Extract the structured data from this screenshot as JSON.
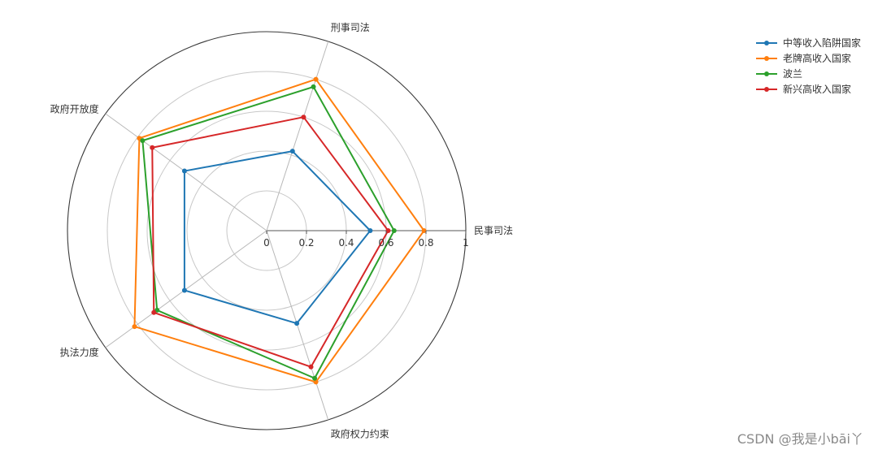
{
  "chart_data": {
    "type": "radar",
    "title": "",
    "axes": [
      "民事司法",
      "刑事司法",
      "政府开放度",
      "执法力度",
      "政府权力约束"
    ],
    "rlim": [
      0,
      1
    ],
    "rticks": [
      "0",
      "0.2",
      "0.4",
      "0.6",
      "0.8",
      "1"
    ],
    "grid": true,
    "legend_position": "top-right",
    "series": [
      {
        "name": "中等收入陷阱国家",
        "color": "#1f77b4",
        "values": [
          0.52,
          0.42,
          0.51,
          0.51,
          0.49
        ]
      },
      {
        "name": "老牌高收入国家",
        "color": "#ff7f0e",
        "values": [
          0.79,
          0.8,
          0.79,
          0.82,
          0.8
        ]
      },
      {
        "name": "波兰",
        "color": "#2ca02c",
        "values": [
          0.64,
          0.76,
          0.77,
          0.68,
          0.78
        ]
      },
      {
        "name": "新兴高收入国家",
        "color": "#d62728",
        "values": [
          0.61,
          0.6,
          0.71,
          0.7,
          0.72
        ]
      }
    ]
  },
  "watermark": "CSDN @我是小bāi丫"
}
